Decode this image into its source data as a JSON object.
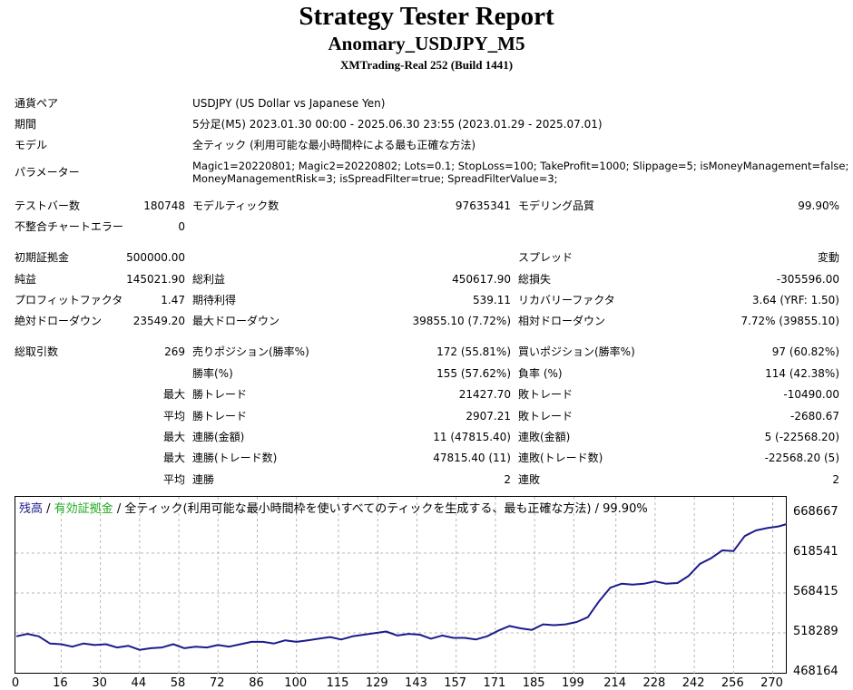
{
  "report": {
    "title": "Strategy Tester Report",
    "subtitle": "Anomary_USDJPY_M5",
    "server": "XMTrading-Real 252 (Build 1441)"
  },
  "info": {
    "pair_label": "通貨ペア",
    "pair_value": "USDJPY (US Dollar vs Japanese Yen)",
    "period_label": "期間",
    "period_value": "5分足(M5) 2023.01.30 00:00 - 2025.06.30 23:55 (2023.01.29 - 2025.07.01)",
    "model_label": "モデル",
    "model_value": "全ティック (利用可能な最小時間枠による最も正確な方法)",
    "params_label": "パラメーター",
    "params_line1": "Magic1=20220801; Magic2=20220802; Lots=0.1; StopLoss=100; TakeProfit=1000; Slippage=5; isMoneyManagement=false;",
    "params_line2": "MoneyManagementRisk=3; isSpreadFilter=true; SpreadFilterValue=3;"
  },
  "stats": {
    "test_bars_label": "テストバー数",
    "test_bars": "180748",
    "model_ticks_label": "モデルティック数",
    "model_ticks": "97635341",
    "model_quality_label": "モデリング品質",
    "model_quality": "99.90%",
    "mismatch_label": "不整合チャートエラー",
    "mismatch": "0",
    "initial_deposit_label": "初期証拠金",
    "initial_deposit": "500000.00",
    "spread_label": "スプレッド",
    "spread": "変動",
    "net_profit_label": "純益",
    "net_profit": "145021.90",
    "gross_profit_label": "総利益",
    "gross_profit": "450617.90",
    "gross_loss_label": "総損失",
    "gross_loss": "-305596.00",
    "profit_factor_label": "プロフィットファクタ",
    "profit_factor": "1.47",
    "expected_payoff_label": "期待利得",
    "expected_payoff": "539.11",
    "recovery_factor_label": "リカバリーファクタ",
    "recovery_factor": "3.64 (YRF: 1.50)",
    "abs_dd_label": "絶対ドローダウン",
    "abs_dd": "23549.20",
    "max_dd_label": "最大ドローダウン",
    "max_dd": "39855.10 (7.72%)",
    "rel_dd_label": "相対ドローダウン",
    "rel_dd": "7.72% (39855.10)",
    "total_trades_label": "総取引数",
    "total_trades": "269",
    "short_label": "売りポジション(勝率%)",
    "short": "172 (55.81%)",
    "long_label": "買いポジション(勝率%)",
    "long": "97 (60.82%)",
    "win_rate_label": "勝率(%)",
    "win_rate": "155 (57.62%)",
    "loss_rate_label": "負率 (%)",
    "loss_rate": "114 (42.38%)",
    "max_label": "最大",
    "avg_label": "平均",
    "win_trade_label": "勝トレード",
    "loss_trade_label": "敗トレード",
    "largest_win": "21427.70",
    "largest_loss": "-10490.00",
    "avg_win": "2907.21",
    "avg_loss": "-2680.67",
    "consec_win_amt_label": "連勝(金額)",
    "consec_win_amt": "11 (47815.40)",
    "consec_loss_amt_label": "連敗(金額)",
    "consec_loss_amt": "5 (-22568.20)",
    "consec_win_trd_label": "連勝(トレード数)",
    "consec_win_trd": "47815.40 (11)",
    "consec_loss_trd_label": "連敗(トレード数)",
    "consec_loss_trd": "-22568.20 (5)",
    "avg_consec_win_label": "連勝",
    "avg_consec_win": "2",
    "avg_consec_loss_label": "連敗",
    "avg_consec_loss": "2"
  },
  "chart": {
    "legend_balance": "残高",
    "legend_sep1": " / ",
    "legend_equity": "有効証拠金",
    "legend_rest": " / 全ティック(利用可能な最小時間枠を使いすべてのティックを生成する、最も正確な方法) / 99.90%"
  },
  "chart_data": {
    "type": "line",
    "y_ticks": [
      "668667",
      "618541",
      "568415",
      "518289",
      "468164"
    ],
    "x_ticks": [
      "0",
      "16",
      "30",
      "44",
      "58",
      "72",
      "86",
      "100",
      "115",
      "129",
      "143",
      "157",
      "171",
      "185",
      "199",
      "214",
      "228",
      "242",
      "256",
      "270"
    ],
    "ylim": [
      468164,
      668667
    ],
    "xlim": [
      0,
      275
    ],
    "grid": true,
    "colors": {
      "balance": "#1c1c8c",
      "equity": "#22aa22",
      "grid": "#b8b8b8"
    },
    "series": [
      {
        "name": "残高",
        "x": [
          0,
          4,
          8,
          12,
          16,
          20,
          24,
          28,
          32,
          36,
          40,
          44,
          48,
          52,
          56,
          60,
          64,
          68,
          72,
          76,
          80,
          84,
          88,
          92,
          96,
          100,
          104,
          108,
          112,
          116,
          120,
          124,
          128,
          132,
          136,
          140,
          144,
          148,
          152,
          156,
          160,
          164,
          168,
          172,
          176,
          180,
          184,
          188,
          192,
          196,
          200,
          204,
          208,
          212,
          216,
          220,
          224,
          228,
          232,
          236,
          240,
          244,
          248,
          252,
          256,
          260,
          264,
          268,
          272,
          275
        ],
        "y": [
          514000,
          517000,
          514000,
          505000,
          504000,
          501000,
          505000,
          503000,
          504000,
          500000,
          502000,
          497000,
          499000,
          500000,
          504000,
          499000,
          501000,
          500000,
          503000,
          501000,
          504000,
          507000,
          507000,
          505000,
          509000,
          507000,
          509000,
          511000,
          513000,
          510000,
          514000,
          516000,
          518000,
          520000,
          515000,
          517000,
          516000,
          511000,
          515000,
          512000,
          512000,
          510000,
          514000,
          521000,
          527000,
          524000,
          522000,
          529000,
          528000,
          529000,
          532000,
          538000,
          558000,
          575000,
          580000,
          579000,
          580000,
          583000,
          580000,
          581000,
          590000,
          605000,
          612000,
          622000,
          621000,
          640000,
          647000,
          650000,
          652000,
          655000
        ]
      }
    ]
  }
}
